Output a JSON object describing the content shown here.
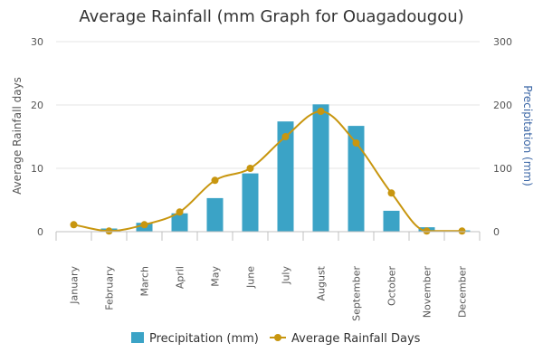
{
  "chart_data": {
    "type": "bar",
    "title": "Average Rainfall (mm Graph for Ouagadougou)",
    "categories": [
      "January",
      "February",
      "March",
      "April",
      "May",
      "June",
      "July",
      "August",
      "September",
      "October",
      "November",
      "December"
    ],
    "series": [
      {
        "name": "Precipitation (mm)",
        "type": "bar",
        "axis": "right",
        "color": "#3ba3c6",
        "values": [
          0,
          5,
          14,
          29,
          53,
          92,
          174,
          201,
          167,
          33,
          7,
          2
        ]
      },
      {
        "name": "Average Rainfall Days",
        "type": "line",
        "axis": "left",
        "color": "#c8960f",
        "values": [
          1.1,
          0.1,
          1.1,
          3.1,
          8.1,
          10,
          15,
          19,
          14,
          6.1,
          0.1,
          0.1
        ]
      }
    ],
    "y_left": {
      "label": "Average Rainfall days",
      "ylim": [
        0,
        30
      ],
      "ticks": [
        "0",
        "10",
        "20",
        "30"
      ],
      "color": "#555555"
    },
    "y_right": {
      "label": "Precipitation (mm)",
      "ylim": [
        0,
        300
      ],
      "ticks": [
        "0",
        "100",
        "200",
        "300"
      ],
      "color": "#3b66a5"
    },
    "grid": true,
    "legend": "bottom-center"
  }
}
